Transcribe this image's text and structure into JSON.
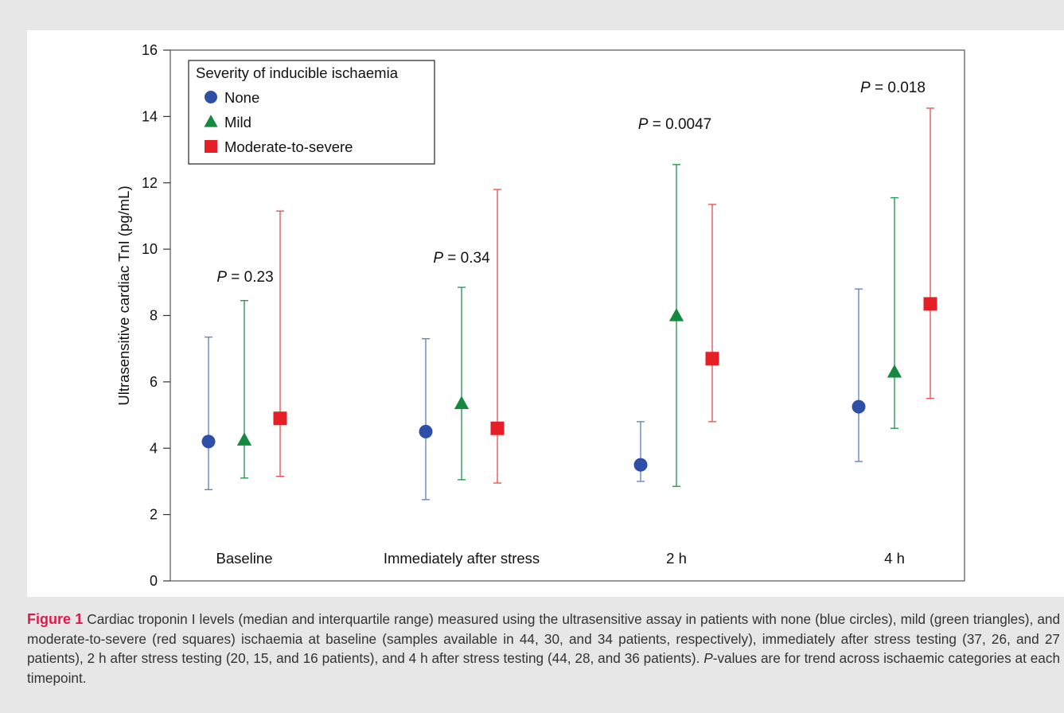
{
  "chart_data": {
    "type": "scatter",
    "subtype": "median-with-interquartile-range",
    "title": "",
    "xlabel": "",
    "ylabel": "Ultrasensitive cardiac TnI (pg/mL)",
    "ylim": [
      0,
      16
    ],
    "yticks": [
      0,
      2,
      4,
      6,
      8,
      10,
      12,
      14,
      16
    ],
    "grid": false,
    "legend": {
      "title": "Severity of inducible ischaemia",
      "position": "top-left"
    },
    "categories": [
      "Baseline",
      "Immediately after stress",
      "2 h",
      "4 h"
    ],
    "series": [
      {
        "name": "None",
        "marker": "circle",
        "color": "#2e4fa8",
        "error_color": "#5b7ec2",
        "median": [
          4.2,
          4.5,
          3.5,
          5.25
        ],
        "q1": [
          2.75,
          2.45,
          3.0,
          3.6
        ],
        "q3": [
          7.35,
          7.3,
          4.8,
          8.8
        ]
      },
      {
        "name": "Mild",
        "marker": "triangle",
        "color": "#138a3f",
        "error_color": "#1f8f4a",
        "median": [
          4.25,
          5.35,
          8.0,
          6.3
        ],
        "q1": [
          3.1,
          3.05,
          2.85,
          4.6
        ],
        "q3": [
          8.45,
          8.85,
          12.55,
          11.55
        ]
      },
      {
        "name": "Moderate-to-severe",
        "marker": "square",
        "color": "#e61e26",
        "error_color": "#ec4a4f",
        "median": [
          4.9,
          4.6,
          6.7,
          8.35
        ],
        "q1": [
          3.15,
          2.95,
          4.8,
          5.5
        ],
        "q3": [
          11.15,
          11.8,
          11.35,
          14.25
        ]
      }
    ],
    "p_values": [
      "P = 0.23",
      "P = 0.34",
      "P = 0.0047",
      "P = 0.018"
    ]
  },
  "caption": {
    "label": "Figure 1",
    "segments": [
      {
        "text": " Cardiac troponin I levels (median and interquartile range) measured using the ultrasensitive assay in patients with none (blue circles), mild (green triangles), and moderate-to-severe (red squares) ischaemia at baseline (samples available in 44, 30, and 34 patients, respectively), immediately after stress testing (37, 26, and 27 patients), 2 h after stress testing (20, 15, and 16 patients), and 4 h after stress testing (44, 28, and 36 patients). "
      },
      {
        "text": "P",
        "italic": true
      },
      {
        "text": "-values are for trend across ischaemic categories at each timepoint."
      }
    ]
  }
}
